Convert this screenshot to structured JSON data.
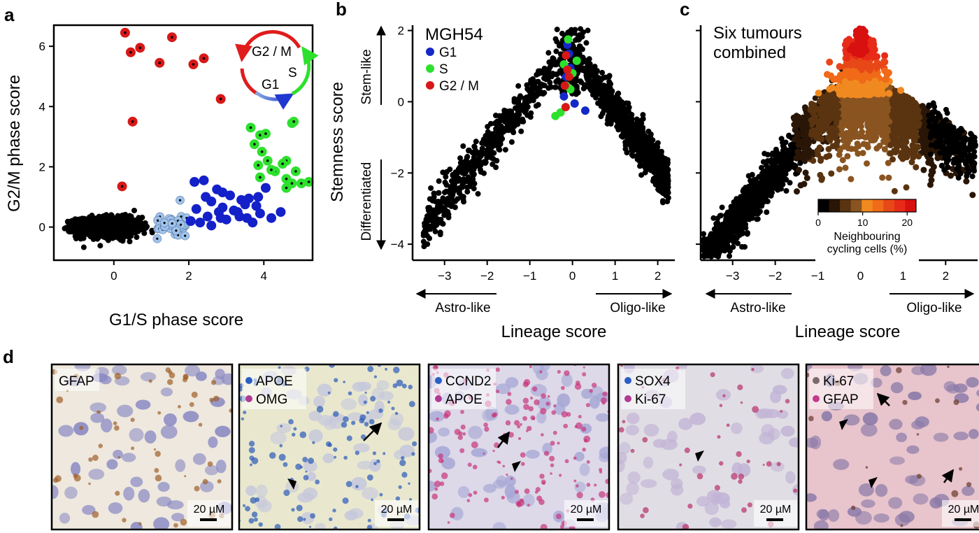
{
  "panels": {
    "a": {
      "letter": "a"
    },
    "b": {
      "letter": "b"
    },
    "c": {
      "letter": "c"
    },
    "d": {
      "letter": "d"
    }
  },
  "chart_data": [
    {
      "id": "a",
      "type": "scatter",
      "xlabel": "G1/S phase score",
      "ylabel": "G2/M phase score",
      "xlim": [
        -1.6,
        5.3
      ],
      "ylim": [
        -1.1,
        6.7
      ],
      "xticks": [
        0,
        2,
        4
      ],
      "yticks": [
        0,
        2,
        4,
        6
      ],
      "cycle_labels": {
        "g2m": "G2 / M",
        "s": "S",
        "g1": "G1"
      },
      "colors": {
        "noncycling": "#000000",
        "g1s_boundary": "#9fc3ea",
        "g1": "#1420c8",
        "s": "#2ee02e",
        "g2m": "#d81818"
      },
      "series": [
        {
          "name": "G2 / M",
          "x": [
            0.3,
            0.45,
            0.7,
            1.55,
            1.22,
            2.4,
            2.12,
            2.85,
            0.5,
            0.22
          ],
          "y": [
            6.45,
            5.8,
            5.95,
            6.3,
            5.45,
            5.6,
            5.4,
            4.25,
            3.5,
            1.35
          ]
        },
        {
          "name": "S",
          "x": [
            3.65,
            3.9,
            4.05,
            3.75,
            3.95,
            4.75,
            4.8,
            4.6,
            4.5,
            4.1,
            4.3,
            4.85,
            3.85,
            4.2,
            4.6,
            5.0,
            3.9,
            4.6,
            4.75,
            5.2
          ],
          "y": [
            3.3,
            3.05,
            3.1,
            2.75,
            2.5,
            3.45,
            3.5,
            2.2,
            2.1,
            2.2,
            1.85,
            1.85,
            2.05,
            1.9,
            1.6,
            1.45,
            1.65,
            1.3,
            1.45,
            1.5
          ]
        },
        {
          "name": "G1",
          "x": [
            2.15,
            2.4,
            2.75,
            2.9,
            3.1,
            3.4,
            3.6,
            3.85,
            4.05,
            2.6,
            2.9,
            3.3,
            3.8,
            2.2,
            2.5,
            2.85,
            3.2,
            3.55,
            3.9,
            4.45,
            2.05,
            2.3,
            2.6,
            3.0,
            3.35,
            3.7,
            4.2,
            2.8,
            3.5,
            2.45
          ],
          "y": [
            1.5,
            1.55,
            1.25,
            1.15,
            1.05,
            0.9,
            0.95,
            1.0,
            1.3,
            0.85,
            0.65,
            0.5,
            0.7,
            0.6,
            0.35,
            0.3,
            0.55,
            0.3,
            0.45,
            0.5,
            0.2,
            0.15,
            0.05,
            0.25,
            0.35,
            0.15,
            0.3,
            0.5,
            0.75,
            1.0
          ]
        }
      ]
    },
    {
      "id": "b",
      "type": "scatter",
      "title": "MGH54",
      "xlabel": "Lineage score",
      "ylabel": "Stemness score",
      "xlim": [
        -3.75,
        2.4
      ],
      "ylim": [
        -4.45,
        2.15
      ],
      "xticks": [
        -3,
        -2,
        -1,
        0,
        1,
        2
      ],
      "yticks": [
        -4,
        -2,
        0,
        2
      ],
      "arrows": {
        "stem": "Stem-like",
        "differentiated": "Differentiated",
        "astro": "Astro-like",
        "oligo": "Oligo-like"
      },
      "legend": [
        {
          "label": "G1",
          "color": "#1428c8"
        },
        {
          "label": "S",
          "color": "#2ee02e"
        },
        {
          "label": "G2 / M",
          "color": "#d81818"
        }
      ],
      "series": [
        {
          "name": "G1",
          "x": [
            -0.12,
            -0.08,
            -0.15,
            0.05,
            0.3,
            -0.05,
            -0.2
          ],
          "y": [
            1.6,
            1.35,
            0.7,
            -0.05,
            -0.25,
            0.95,
            0.15
          ]
        },
        {
          "name": "S",
          "x": [
            -0.1,
            0.1,
            -0.2,
            -0.15,
            -0.4,
            -0.28,
            -0.05,
            0.0
          ],
          "y": [
            1.75,
            1.15,
            1.05,
            0.45,
            -0.4,
            -0.3,
            0.35,
            0.8
          ]
        },
        {
          "name": "G2 / M",
          "x": [
            -0.15,
            -0.12,
            -0.18,
            -0.08,
            -0.16
          ],
          "y": [
            1.3,
            0.9,
            0.45,
            0.7,
            -0.15
          ]
        }
      ]
    },
    {
      "id": "c",
      "type": "scatter",
      "title": "Six tumours combined",
      "xlabel": "Lineage score",
      "xlim": [
        -3.75,
        2.75
      ],
      "ylim": [
        -4.45,
        2.3
      ],
      "xticks": [
        -3,
        -2,
        -1,
        0,
        1,
        2
      ],
      "arrows": {
        "astro": "Astro-like",
        "oligo": "Oligo-like"
      },
      "colorbar": {
        "label": "Neighbouring cycling cells (%)",
        "min": 0,
        "max": 22,
        "ticks": [
          0,
          10,
          20
        ],
        "colors": [
          "#000000",
          "#2a1606",
          "#5a3410",
          "#8a5420",
          "#f08a20",
          "#f06a18",
          "#e84818",
          "#e82a18",
          "#d81010"
        ]
      }
    }
  ],
  "micrographs": [
    {
      "labels": [
        "GFAP"
      ],
      "dots": [],
      "scale": "20 µM"
    },
    {
      "labels": [
        "APOE",
        "OMG"
      ],
      "dots": [
        "#2a5fc4",
        "#b03a94"
      ],
      "scale": "20 µM"
    },
    {
      "labels": [
        "CCND2",
        "APOE"
      ],
      "dots": [
        "#2a5fc4",
        "#b03a94"
      ],
      "scale": "20 µM"
    },
    {
      "labels": [
        "SOX4",
        "Ki-67"
      ],
      "dots": [
        "#2a5fc4",
        "#b03a94"
      ],
      "scale": "20 µM"
    },
    {
      "labels": [
        "Ki-67",
        "GFAP"
      ],
      "dots": [
        "#7a6a6a",
        "#c43a8c"
      ],
      "scale": "20 µM"
    }
  ]
}
